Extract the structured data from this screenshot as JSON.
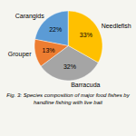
{
  "chart_data": {
    "type": "pie",
    "title": "Fig. 3: Species composition of major food fishes by handline fishing with live bait",
    "categories": [
      "Carangids",
      "Grouper",
      "Barracuda",
      "Needlefish"
    ],
    "values": [
      22,
      13,
      32,
      33
    ],
    "value_labels": [
      "22%",
      "13%",
      "32%",
      "33%"
    ],
    "colors": [
      "#5b9bd5",
      "#ed7d31",
      "#a5a5a5",
      "#ffc000"
    ],
    "data_labels": true
  }
}
